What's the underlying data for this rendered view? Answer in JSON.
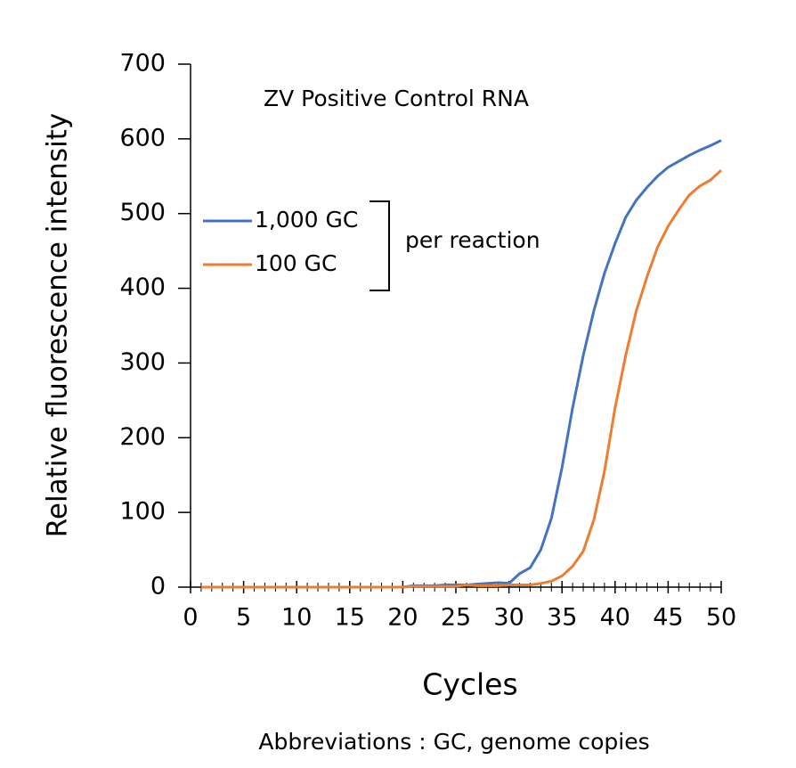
{
  "chart_data": {
    "type": "line",
    "title": "ZV Positive Control RNA",
    "x_label": "Cycles",
    "y_label": "Relative fluorescence intensity",
    "annotation": "per reaction",
    "footnote": "Abbreviations : GC, genome copies",
    "x": [
      1,
      2,
      3,
      4,
      5,
      6,
      7,
      8,
      9,
      10,
      11,
      12,
      13,
      14,
      15,
      16,
      17,
      18,
      19,
      20,
      21,
      22,
      23,
      24,
      25,
      26,
      27,
      28,
      29,
      30,
      31,
      32,
      33,
      34,
      35,
      36,
      37,
      38,
      39,
      40,
      41,
      42,
      43,
      44,
      45,
      46,
      47,
      48,
      49,
      50
    ],
    "series": [
      {
        "name": "1,000 GC",
        "color": "#4472c4",
        "values": [
          0,
          0,
          0,
          0,
          0,
          0,
          0,
          0,
          0,
          0,
          0,
          0,
          0,
          0,
          0,
          0,
          0,
          0,
          0,
          0,
          2,
          2,
          2,
          3,
          3,
          3,
          4,
          5,
          6,
          5,
          18,
          26,
          50,
          92,
          160,
          240,
          310,
          370,
          420,
          460,
          495,
          518,
          535,
          550,
          562,
          570,
          578,
          585,
          591,
          598
        ]
      },
      {
        "name": "100 GC",
        "color": "#ed7d31",
        "values": [
          0,
          0,
          0,
          0,
          0,
          0,
          0,
          0,
          0,
          0,
          0,
          0,
          0,
          0,
          0,
          0,
          0,
          0,
          0,
          0,
          1,
          1,
          1,
          1,
          1,
          3,
          2,
          2,
          2,
          3,
          3,
          3,
          5,
          8,
          15,
          28,
          48,
          90,
          155,
          240,
          310,
          370,
          415,
          455,
          483,
          505,
          525,
          537,
          545,
          558
        ]
      }
    ],
    "xlim": [
      0,
      50
    ],
    "xticks": [
      0,
      5,
      10,
      15,
      20,
      25,
      30,
      35,
      40,
      45,
      50
    ],
    "ylim": [
      0,
      700
    ],
    "yticks": [
      0,
      100,
      200,
      300,
      400,
      500,
      600,
      700
    ]
  }
}
